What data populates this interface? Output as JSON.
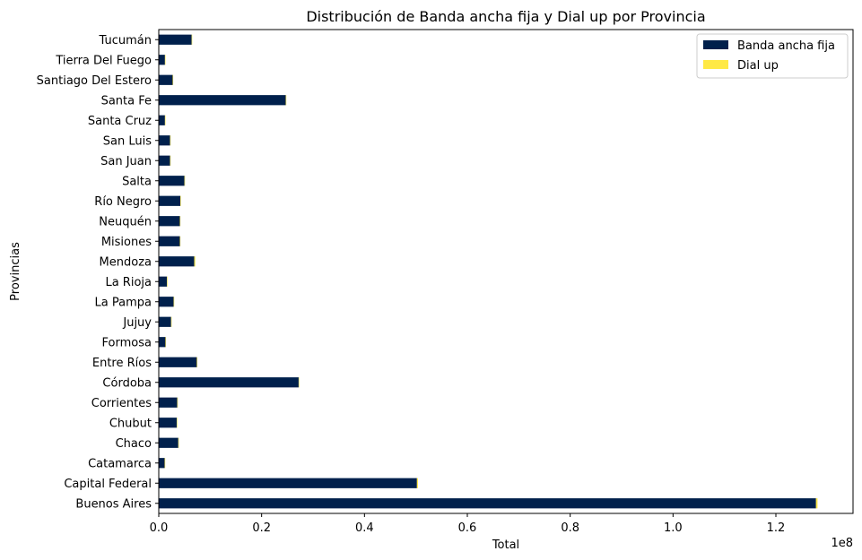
{
  "chart_data": {
    "type": "bar",
    "orientation": "horizontal",
    "stacked": true,
    "title": "Distribución de Banda ancha fija y Dial up por Provincia",
    "xlabel": "Total",
    "ylabel": "Provincias",
    "x_scale_note": "1e8",
    "xlim": [
      0,
      1.35
    ],
    "xticks": [
      0.0,
      0.2,
      0.4,
      0.6,
      0.8,
      1.0,
      1.2
    ],
    "xtick_labels": [
      "0.0",
      "0.2",
      "0.4",
      "0.6",
      "0.8",
      "1.0",
      "1.2"
    ],
    "categories": [
      "Buenos Aires",
      "Capital Federal",
      "Catamarca",
      "Chaco",
      "Chubut",
      "Corrientes",
      "Córdoba",
      "Entre Ríos",
      "Formosa",
      "Jujuy",
      "La Pampa",
      "La Rioja",
      "Mendoza",
      "Misiones",
      "Neuquén",
      "Río Negro",
      "Salta",
      "San Juan",
      "San Luis",
      "Santa Cruz",
      "Santa Fe",
      "Santiago Del Estero",
      "Tierra Del Fuego",
      "Tucumán"
    ],
    "series": [
      {
        "name": "Banda ancha fija",
        "color": "#00204c",
        "values": [
          1.278,
          0.502,
          0.0115,
          0.038,
          0.035,
          0.036,
          0.272,
          0.074,
          0.013,
          0.024,
          0.029,
          0.016,
          0.069,
          0.041,
          0.041,
          0.042,
          0.05,
          0.022,
          0.022,
          0.012,
          0.247,
          0.027,
          0.012,
          0.064
        ]
      },
      {
        "name": "Dial up",
        "color": "#ffe945",
        "values": [
          0.003,
          0.002,
          0.0002,
          0.0002,
          0.0002,
          0.0002,
          0.001,
          0.0005,
          0.0001,
          0.0002,
          0.0002,
          0.0001,
          0.002,
          0.0002,
          0.001,
          0.0008,
          0.0003,
          0.0002,
          0.0002,
          0.0001,
          0.001,
          0.0002,
          0.0001,
          0.0003
        ]
      }
    ],
    "legend": {
      "position": "upper-right",
      "labels": [
        "Banda ancha fija",
        "Dial up"
      ]
    },
    "grid": false
  }
}
